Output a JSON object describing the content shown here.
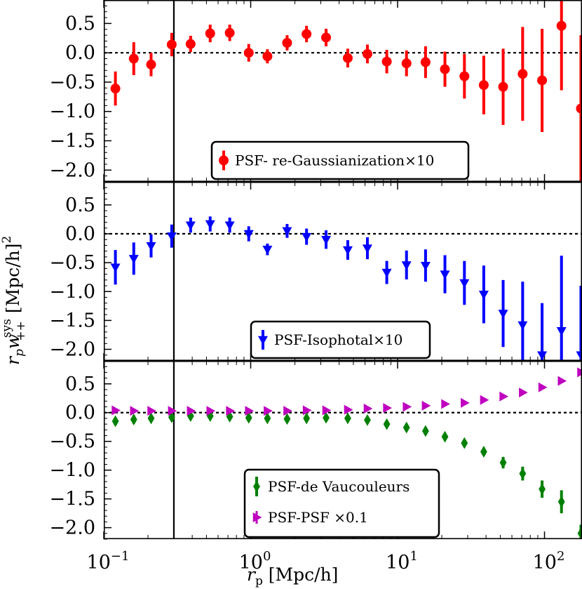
{
  "figure": {
    "xlabel": "r_p [Mpc/h]",
    "xlabel_main": "r",
    "xlabel_sub": "p",
    "xlabel_rest": " [Mpc/h]",
    "ylabel_main": "r",
    "ylabel_sub": "p",
    "ylabel_w": "w",
    "ylabel_sub2": "++",
    "ylabel_sup": "sys",
    "ylabel_rest": " [Mpc/h]",
    "ylabel_power": "2",
    "x_tick_base": "10",
    "x_tick_exponents": [
      "−1",
      "0",
      "1",
      "2"
    ],
    "vline_x": 0.3
  },
  "chart_data": [
    {
      "type": "errorbar",
      "panel": "top",
      "xscale": "log",
      "xlim": [
        0.1,
        180
      ],
      "ylim": [
        -2.2,
        0.9
      ],
      "yticks": [
        0.5,
        0.0,
        -0.5,
        -1.0,
        -1.5,
        -2.0
      ],
      "ytick_labels": [
        "0.5",
        "0.0",
        "−0.5",
        "−1.0",
        "−1.5",
        "−2.0"
      ],
      "hline": 0,
      "legend_position": "bottom-center",
      "series": [
        {
          "name": "PSF- re-Gaussianization×10",
          "color": "#ff0000",
          "marker": "circle",
          "x": [
            0.12,
            0.16,
            0.21,
            0.29,
            0.39,
            0.53,
            0.72,
            0.97,
            1.3,
            1.77,
            2.4,
            3.26,
            4.58,
            6.23,
            8.44,
            11.5,
            15.5,
            21.0,
            28.5,
            38.6,
            52.3,
            71.0,
            96.3,
            130.5,
            177.0
          ],
          "y": [
            -0.61,
            -0.1,
            -0.2,
            0.14,
            0.15,
            0.33,
            0.34,
            0.0,
            -0.06,
            0.17,
            0.32,
            0.26,
            -0.09,
            -0.02,
            -0.15,
            -0.18,
            -0.16,
            -0.28,
            -0.4,
            -0.55,
            -0.58,
            -0.36,
            -0.47,
            0.46,
            -0.95
          ],
          "yerr": [
            0.29,
            0.28,
            0.2,
            0.2,
            0.14,
            0.15,
            0.14,
            0.15,
            0.12,
            0.13,
            0.14,
            0.15,
            0.16,
            0.16,
            0.2,
            0.22,
            0.27,
            0.3,
            0.38,
            0.5,
            0.65,
            0.8,
            0.88,
            1.1,
            1.25
          ]
        }
      ]
    },
    {
      "type": "errorbar",
      "panel": "middle",
      "xscale": "log",
      "xlim": [
        0.1,
        180
      ],
      "ylim": [
        -2.2,
        0.9
      ],
      "yticks": [
        0.5,
        0.0,
        -0.5,
        -1.0,
        -1.5,
        -2.0
      ],
      "ytick_labels": [
        "0.5",
        "0.0",
        "−0.5",
        "−1.0",
        "−1.5",
        "−2.0"
      ],
      "hline": 0,
      "legend_position": "bottom-center",
      "series": [
        {
          "name": "PSF-Isophotal×10",
          "color": "#0000ff",
          "marker": "triangle-down",
          "x": [
            0.12,
            0.16,
            0.21,
            0.29,
            0.39,
            0.53,
            0.72,
            0.97,
            1.3,
            1.77,
            2.4,
            3.26,
            4.58,
            6.23,
            8.44,
            11.5,
            15.5,
            21.0,
            28.5,
            38.6,
            52.3,
            71.0,
            96.3,
            130.5,
            177.0
          ],
          "y": [
            -0.58,
            -0.43,
            -0.21,
            -0.04,
            0.15,
            0.17,
            0.15,
            0.0,
            -0.27,
            0.05,
            -0.05,
            -0.1,
            -0.28,
            -0.25,
            -0.67,
            -0.54,
            -0.55,
            -0.7,
            -0.85,
            -1.05,
            -1.38,
            -1.58,
            -2.1,
            -1.68,
            -2.1
          ],
          "yerr": [
            0.3,
            0.28,
            0.2,
            0.2,
            0.13,
            0.13,
            0.13,
            0.13,
            0.1,
            0.12,
            0.14,
            0.16,
            0.17,
            0.19,
            0.2,
            0.25,
            0.28,
            0.33,
            0.38,
            0.5,
            0.58,
            0.75,
            0.9,
            1.3,
            1.2
          ]
        }
      ]
    },
    {
      "type": "errorbar",
      "panel": "bottom",
      "xscale": "log",
      "xlim": [
        0.1,
        180
      ],
      "ylim": [
        -2.2,
        0.9
      ],
      "yticks": [
        0.5,
        0.0,
        -0.5,
        -1.0,
        -1.5,
        -2.0
      ],
      "ytick_labels": [
        "0.5",
        "0.0",
        "−0.5",
        "−1.0",
        "−1.5",
        "−2.0"
      ],
      "hline": 0,
      "legend_position": "bottom-center",
      "series": [
        {
          "name": "PSF-de Vaucouleurs",
          "color": "#008000",
          "marker": "diamond",
          "x": [
            0.12,
            0.16,
            0.21,
            0.29,
            0.39,
            0.53,
            0.72,
            0.97,
            1.3,
            1.77,
            2.4,
            3.26,
            4.58,
            6.23,
            8.44,
            11.5,
            15.5,
            21.0,
            28.5,
            38.6,
            52.3,
            71.0,
            96.3,
            130.5,
            177.0
          ],
          "y": [
            -0.15,
            -0.12,
            -0.1,
            -0.08,
            -0.06,
            -0.06,
            -0.07,
            -0.09,
            -0.1,
            -0.11,
            -0.1,
            -0.09,
            -0.1,
            -0.13,
            -0.2,
            -0.26,
            -0.32,
            -0.42,
            -0.53,
            -0.68,
            -0.87,
            -1.06,
            -1.33,
            -1.55,
            -2.1
          ],
          "yerr": [
            0.07,
            0.07,
            0.06,
            0.05,
            0.05,
            0.05,
            0.05,
            0.05,
            0.05,
            0.05,
            0.05,
            0.05,
            0.05,
            0.05,
            0.05,
            0.05,
            0.05,
            0.06,
            0.06,
            0.07,
            0.1,
            0.12,
            0.15,
            0.2,
            0.15
          ]
        },
        {
          "name": "PSF-PSF ×0.1",
          "color": "#bf00bf",
          "marker": "triangle-right",
          "x": [
            0.12,
            0.16,
            0.21,
            0.29,
            0.39,
            0.53,
            0.72,
            0.97,
            1.3,
            1.77,
            2.4,
            3.26,
            4.58,
            6.23,
            8.44,
            11.5,
            15.5,
            21.0,
            28.5,
            38.6,
            52.3,
            71.0,
            96.3,
            130.5,
            177.0
          ],
          "y": [
            0.04,
            0.03,
            0.03,
            0.03,
            0.03,
            0.03,
            0.03,
            0.03,
            0.03,
            0.03,
            0.04,
            0.04,
            0.05,
            0.07,
            0.08,
            0.1,
            0.12,
            0.15,
            0.17,
            0.22,
            0.28,
            0.35,
            0.44,
            0.55,
            0.7
          ]
        }
      ]
    }
  ]
}
